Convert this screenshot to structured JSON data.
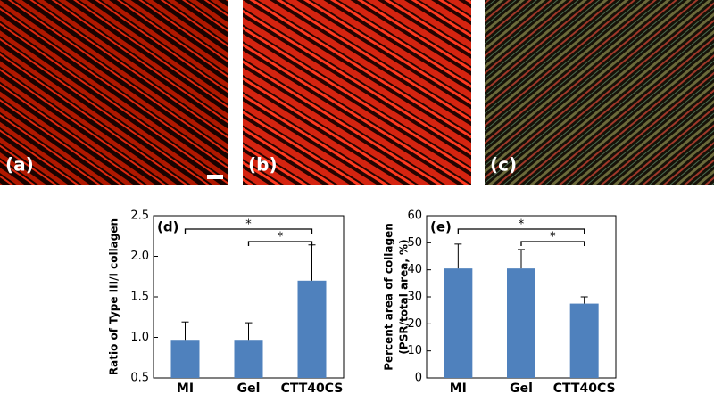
{
  "panels": [
    "(a)",
    "(b)",
    "(c)"
  ],
  "chart_data": [
    {
      "type": "bar",
      "panel": "(d)",
      "y_label": [
        "Ratio of Type III/I collagen"
      ],
      "categories": [
        "MI",
        "Gel",
        "CTT40CS"
      ],
      "values": [
        0.97,
        0.97,
        1.7
      ],
      "errors": [
        0.22,
        0.21,
        0.44
      ],
      "color": "#4f81bd",
      "ylim": [
        0.5,
        2.5
      ],
      "yticks": [
        0.5,
        {
          "value": 1,
          "label": "1.0"
        },
        1.5,
        {
          "value": 2,
          "label": "2.0"
        },
        2.5
      ],
      "significance": [
        {
          "pair": [
            "MI",
            "CTT40CS"
          ],
          "label": "*"
        },
        {
          "pair": [
            "Gel",
            "CTT40CS"
          ],
          "label": "*"
        }
      ]
    },
    {
      "type": "bar",
      "panel": "(e)",
      "y_label": [
        "Percent area of collagen",
        "(PSR/total area, %)"
      ],
      "categories": [
        "MI",
        "Gel",
        "CTT40CS"
      ],
      "values": [
        40.5,
        40.5,
        27.5
      ],
      "errors": [
        9,
        7,
        2.5
      ],
      "color": "#4f81bd",
      "ylim": [
        0,
        60
      ],
      "yticks": [
        0,
        10,
        20,
        30,
        40,
        50,
        60
      ],
      "significance": [
        {
          "pair": [
            "MI",
            "CTT40CS"
          ],
          "label": "*"
        },
        {
          "pair": [
            "Gel",
            "CTT40CS"
          ],
          "label": "*"
        }
      ]
    }
  ]
}
